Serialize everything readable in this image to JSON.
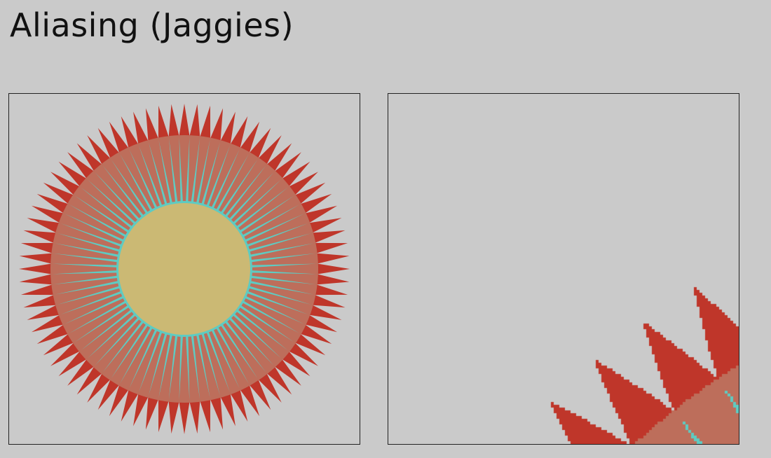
{
  "slide": {
    "title": "Aliasing (Jaggies)"
  },
  "figure": {
    "spike_count": 80,
    "colors": {
      "background": "#cacaca",
      "outer_spikes": "#bf362a",
      "ring": "#bd6e5b",
      "inner_rays": "#5ecbc2",
      "core": "#cbb974",
      "border": "#222222"
    }
  }
}
